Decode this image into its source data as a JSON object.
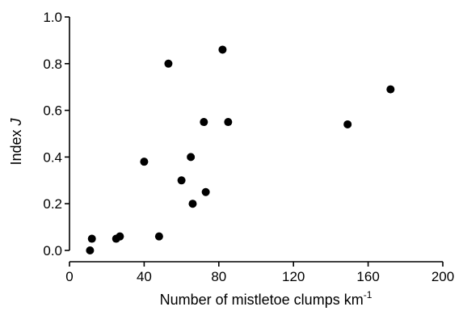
{
  "chart_data": {
    "type": "scatter",
    "xlabel": "Number of mistletoe clumps km",
    "xlabel_superscript": "-1",
    "ylabel": "Index ",
    "ylabel_italic": "J",
    "xlim": [
      0,
      200
    ],
    "ylim": [
      0.0,
      1.0
    ],
    "x_ticks": [
      0,
      40,
      80,
      120,
      160,
      200
    ],
    "y_ticks": [
      0.0,
      0.2,
      0.4,
      0.6,
      0.8,
      1.0
    ],
    "x_tick_labels": [
      "0",
      "40",
      "80",
      "120",
      "160",
      "200"
    ],
    "y_tick_labels": [
      "0.0",
      "0.2",
      "0.4",
      "0.6",
      "0.8",
      "1.0"
    ],
    "grid": false,
    "points": [
      {
        "x": 11,
        "y": 0.0
      },
      {
        "x": 12,
        "y": 0.05
      },
      {
        "x": 25,
        "y": 0.05
      },
      {
        "x": 27,
        "y": 0.06
      },
      {
        "x": 40,
        "y": 0.38
      },
      {
        "x": 48,
        "y": 0.06
      },
      {
        "x": 53,
        "y": 0.8
      },
      {
        "x": 60,
        "y": 0.3
      },
      {
        "x": 65,
        "y": 0.4
      },
      {
        "x": 66,
        "y": 0.2
      },
      {
        "x": 72,
        "y": 0.55
      },
      {
        "x": 73,
        "y": 0.25
      },
      {
        "x": 82,
        "y": 0.86
      },
      {
        "x": 85,
        "y": 0.55
      },
      {
        "x": 149,
        "y": 0.54
      },
      {
        "x": 172,
        "y": 0.69
      }
    ]
  }
}
